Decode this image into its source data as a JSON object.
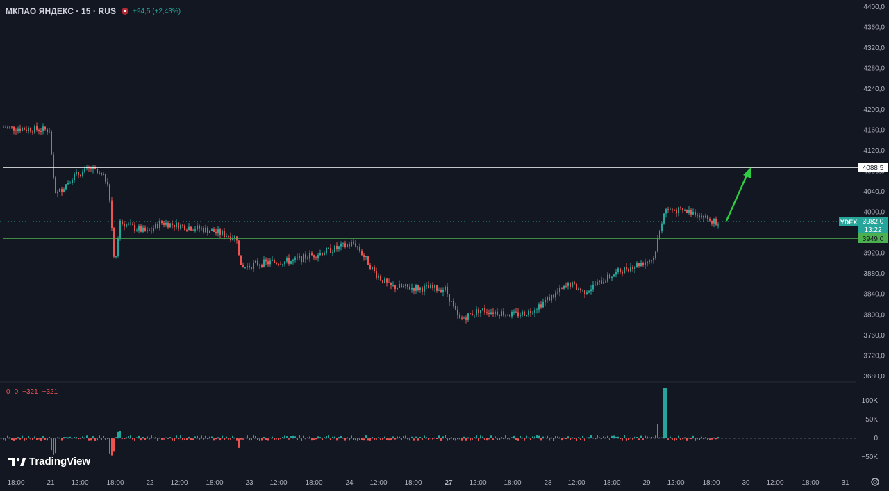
{
  "header": {
    "symbol": "МКПАО ЯНДЕКС · 15 · RUS",
    "change": "+94,5 (+2,43%)"
  },
  "volume_legend": [
    "0",
    "0",
    "−321",
    "−321"
  ],
  "brand": "TradingView",
  "price_axis": {
    "ticks": [
      "4400,0",
      "4360,0",
      "4320,0",
      "4280,0",
      "4240,0",
      "4200,0",
      "4160,0",
      "4120,0",
      "4080,0",
      "4040,0",
      "4000,0",
      "3960,0",
      "3920,0",
      "3880,0",
      "3840,0",
      "3800,0",
      "3760,0",
      "3720,0",
      "3680,0"
    ],
    "ticker_label": "YDEX",
    "last_price": "3982,0",
    "countdown": "13:22",
    "line_white_label": "4088,5",
    "line_green_label": "3949,0"
  },
  "volume_axis": {
    "ticks": [
      "100K",
      "50K",
      "0",
      "−50K"
    ]
  },
  "time_axis": {
    "ticks": [
      "18:00",
      "21",
      "12:00",
      "18:00",
      "22",
      "12:00",
      "18:00",
      "23",
      "12:00",
      "18:00",
      "24",
      "12:00",
      "18:00",
      "27",
      "12:00",
      "18:00",
      "28",
      "12:00",
      "18:00",
      "29",
      "12:00",
      "18:00",
      "30",
      "12:00",
      "18:00",
      "31"
    ]
  },
  "colors": {
    "up": "#26a69a",
    "down": "#ef5350",
    "background": "#131722",
    "white_line": "#ffffff",
    "green_line": "#4caf50",
    "arrow": "#2ecc40"
  },
  "chart_data": {
    "type": "candlestick",
    "instrument": "МКПАО ЯНДЕКС",
    "interval": "15",
    "ylim": [
      3680,
      4400
    ],
    "horizontal_levels": [
      4088.5,
      3949.0
    ],
    "last_price": 3982.0,
    "close_path": [
      {
        "x": "20 18:00",
        "y": 4165
      },
      {
        "x": "21 09:00",
        "y": 4160
      },
      {
        "x": "21 10:00",
        "y": 4030
      },
      {
        "x": "21 12:00",
        "y": 4070
      },
      {
        "x": "21 15:00",
        "y": 4085
      },
      {
        "x": "21 17:00",
        "y": 4060
      },
      {
        "x": "21 18:00",
        "y": 3900
      },
      {
        "x": "21 19:00",
        "y": 3980
      },
      {
        "x": "22 10:00",
        "y": 3960
      },
      {
        "x": "22 12:00",
        "y": 3980
      },
      {
        "x": "22 15:00",
        "y": 3975
      },
      {
        "x": "22 19:00",
        "y": 3965
      },
      {
        "x": "23 09:00",
        "y": 3950
      },
      {
        "x": "23 10:00",
        "y": 3890
      },
      {
        "x": "23 13:00",
        "y": 3900
      },
      {
        "x": "23 18:00",
        "y": 3905
      },
      {
        "x": "24 09:00",
        "y": 3940
      },
      {
        "x": "24 13:00",
        "y": 3880
      },
      {
        "x": "24 18:00",
        "y": 3855
      },
      {
        "x": "27 10:00",
        "y": 3850
      },
      {
        "x": "27 11:00",
        "y": 3790
      },
      {
        "x": "27 15:00",
        "y": 3810
      },
      {
        "x": "27 19:00",
        "y": 3800
      },
      {
        "x": "28 10:00",
        "y": 3805
      },
      {
        "x": "28 13:00",
        "y": 3860
      },
      {
        "x": "28 16:00",
        "y": 3845
      },
      {
        "x": "28 20:00",
        "y": 3885
      },
      {
        "x": "29 09:00",
        "y": 3910
      },
      {
        "x": "29 10:00",
        "y": 4005
      },
      {
        "x": "29 17:00",
        "y": 4000
      },
      {
        "x": "29 19:00",
        "y": 3982
      }
    ]
  }
}
